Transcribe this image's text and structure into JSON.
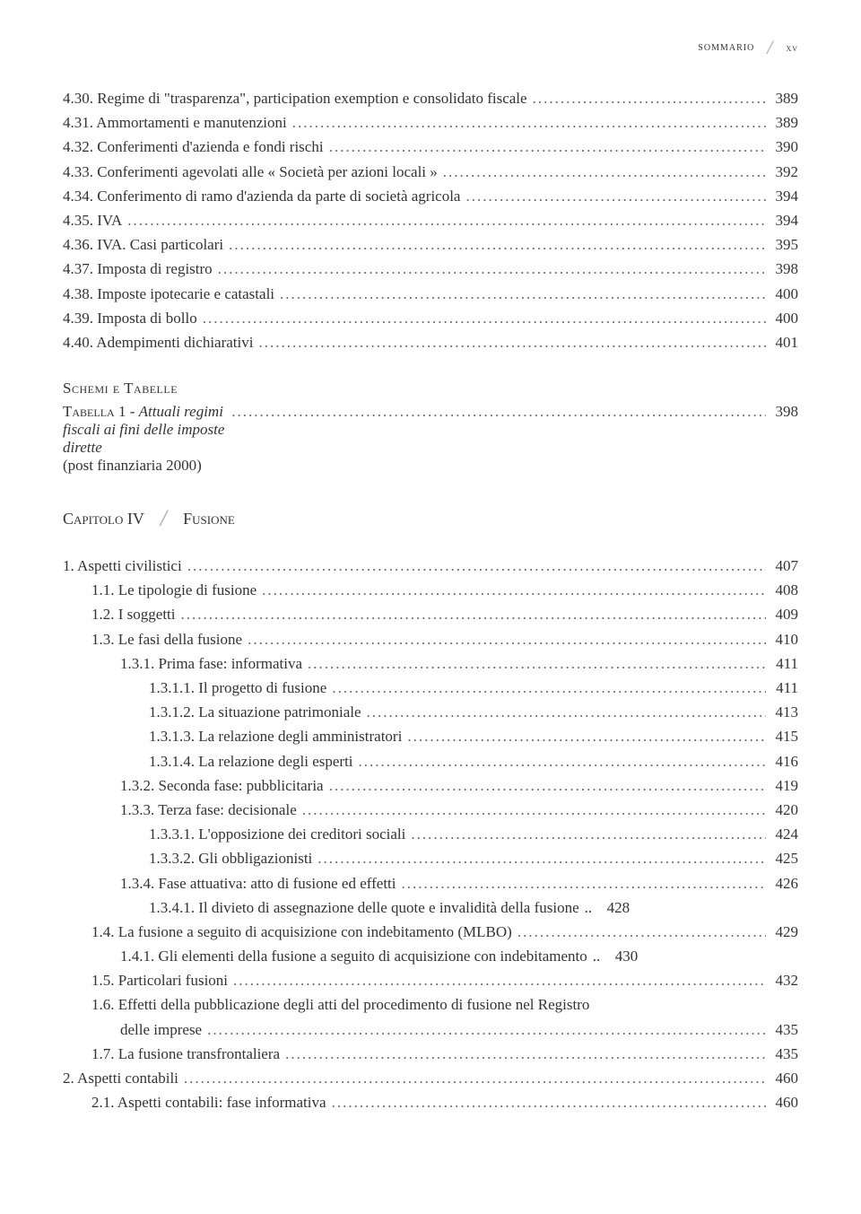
{
  "header": {
    "title": "sommario",
    "pageNumeral": "xv"
  },
  "block1": [
    {
      "text": "4.30. Regime di \"trasparenza\", participation exemption e consolidato fiscale",
      "page": "389",
      "indent": 0
    },
    {
      "text": "4.31. Ammortamenti e manutenzioni",
      "page": "389",
      "indent": 0
    },
    {
      "text": "4.32. Conferimenti d'azienda e fondi rischi",
      "page": "390",
      "indent": 0
    },
    {
      "text": "4.33. Conferimenti agevolati alle « Società per azioni locali »",
      "page": "392",
      "indent": 0
    },
    {
      "text": "4.34. Conferimento di ramo d'azienda da parte di società agricola",
      "page": "394",
      "indent": 0
    },
    {
      "text": "4.35. IVA",
      "page": "394",
      "indent": 0
    },
    {
      "text": "4.36. IVA. Casi particolari",
      "page": "395",
      "indent": 0
    },
    {
      "text": "4.37. Imposta di registro",
      "page": "398",
      "indent": 0
    },
    {
      "text": "4.38. Imposte ipotecarie e catastali",
      "page": "400",
      "indent": 0
    },
    {
      "text": "4.39. Imposta di bollo",
      "page": "400",
      "indent": 0
    },
    {
      "text": "4.40. Adempimenti dichiarativi",
      "page": "401",
      "indent": 0
    }
  ],
  "schemi": {
    "heading": "Schemi e Tabelle",
    "tabella_prefix": "Tabella",
    "tabella_num": " 1 - ",
    "tabella_title": "Attuali regimi fiscali ai fini delle imposte dirette",
    "tabella_page": "398",
    "post": "(post finanziaria 2000)"
  },
  "chapter": {
    "label": "Capitolo IV",
    "title": "Fusione"
  },
  "block2": [
    {
      "text": "1.  Aspetti civilistici",
      "page": "407",
      "indent": 0
    },
    {
      "text": "1.1.   Le tipologie di fusione",
      "page": "408",
      "indent": 1
    },
    {
      "text": "1.2.   I soggetti",
      "page": "409",
      "indent": 1
    },
    {
      "text": "1.3.   Le fasi della fusione",
      "page": "410",
      "indent": 1
    },
    {
      "text": "1.3.1.   Prima fase: informativa",
      "page": "411",
      "indent": 2
    },
    {
      "text": "1.3.1.1.  Il progetto di fusione",
      "page": "411",
      "indent": 3
    },
    {
      "text": "1.3.1.2.  La situazione patrimoniale",
      "page": "413",
      "indent": 3
    },
    {
      "text": "1.3.1.3.  La relazione degli amministratori",
      "page": "415",
      "indent": 3
    },
    {
      "text": "1.3.1.4.  La relazione degli esperti",
      "page": "416",
      "indent": 3
    },
    {
      "text": "1.3.2.   Seconda fase: pubblicitaria",
      "page": "419",
      "indent": 2
    },
    {
      "text": "1.3.3.   Terza fase: decisionale",
      "page": "420",
      "indent": 2
    },
    {
      "text": "1.3.3.1.  L'opposizione dei creditori sociali",
      "page": "424",
      "indent": 3
    },
    {
      "text": "1.3.3.2.  Gli obbligazionisti",
      "page": "425",
      "indent": 3
    },
    {
      "text": "1.3.4.   Fase attuativa: atto di fusione ed effetti",
      "page": "426",
      "indent": 2
    },
    {
      "text": "1.3.4.1.   Il divieto di assegnazione delle quote e invalidità della fusione",
      "page": "428",
      "indent": 3,
      "sep": ".."
    },
    {
      "text": "1.4.   La fusione a seguito di acquisizione con indebitamento (MLBO)",
      "page": "429",
      "indent": 1
    },
    {
      "text": "1.4.1.   Gli elementi della fusione a seguito di acquisizione con indebitamento",
      "page": "430",
      "indent": 2,
      "sep": ".."
    },
    {
      "text": "1.5.   Particolari fusioni",
      "page": "432",
      "indent": 1
    },
    {
      "text": "1.6.   Effetti della pubblicazione degli atti del procedimento di fusione nel Registro",
      "page": "",
      "indent": 1,
      "nolead": true
    },
    {
      "text": "delle imprese",
      "page": "435",
      "indent": 2,
      "cont": true
    },
    {
      "text": "1.7.   La fusione transfrontaliera",
      "page": "435",
      "indent": 1
    },
    {
      "text": "2.  Aspetti contabili",
      "page": "460",
      "indent": 0
    },
    {
      "text": "2.1.   Aspetti contabili: fase informativa",
      "page": "460",
      "indent": 1
    }
  ]
}
